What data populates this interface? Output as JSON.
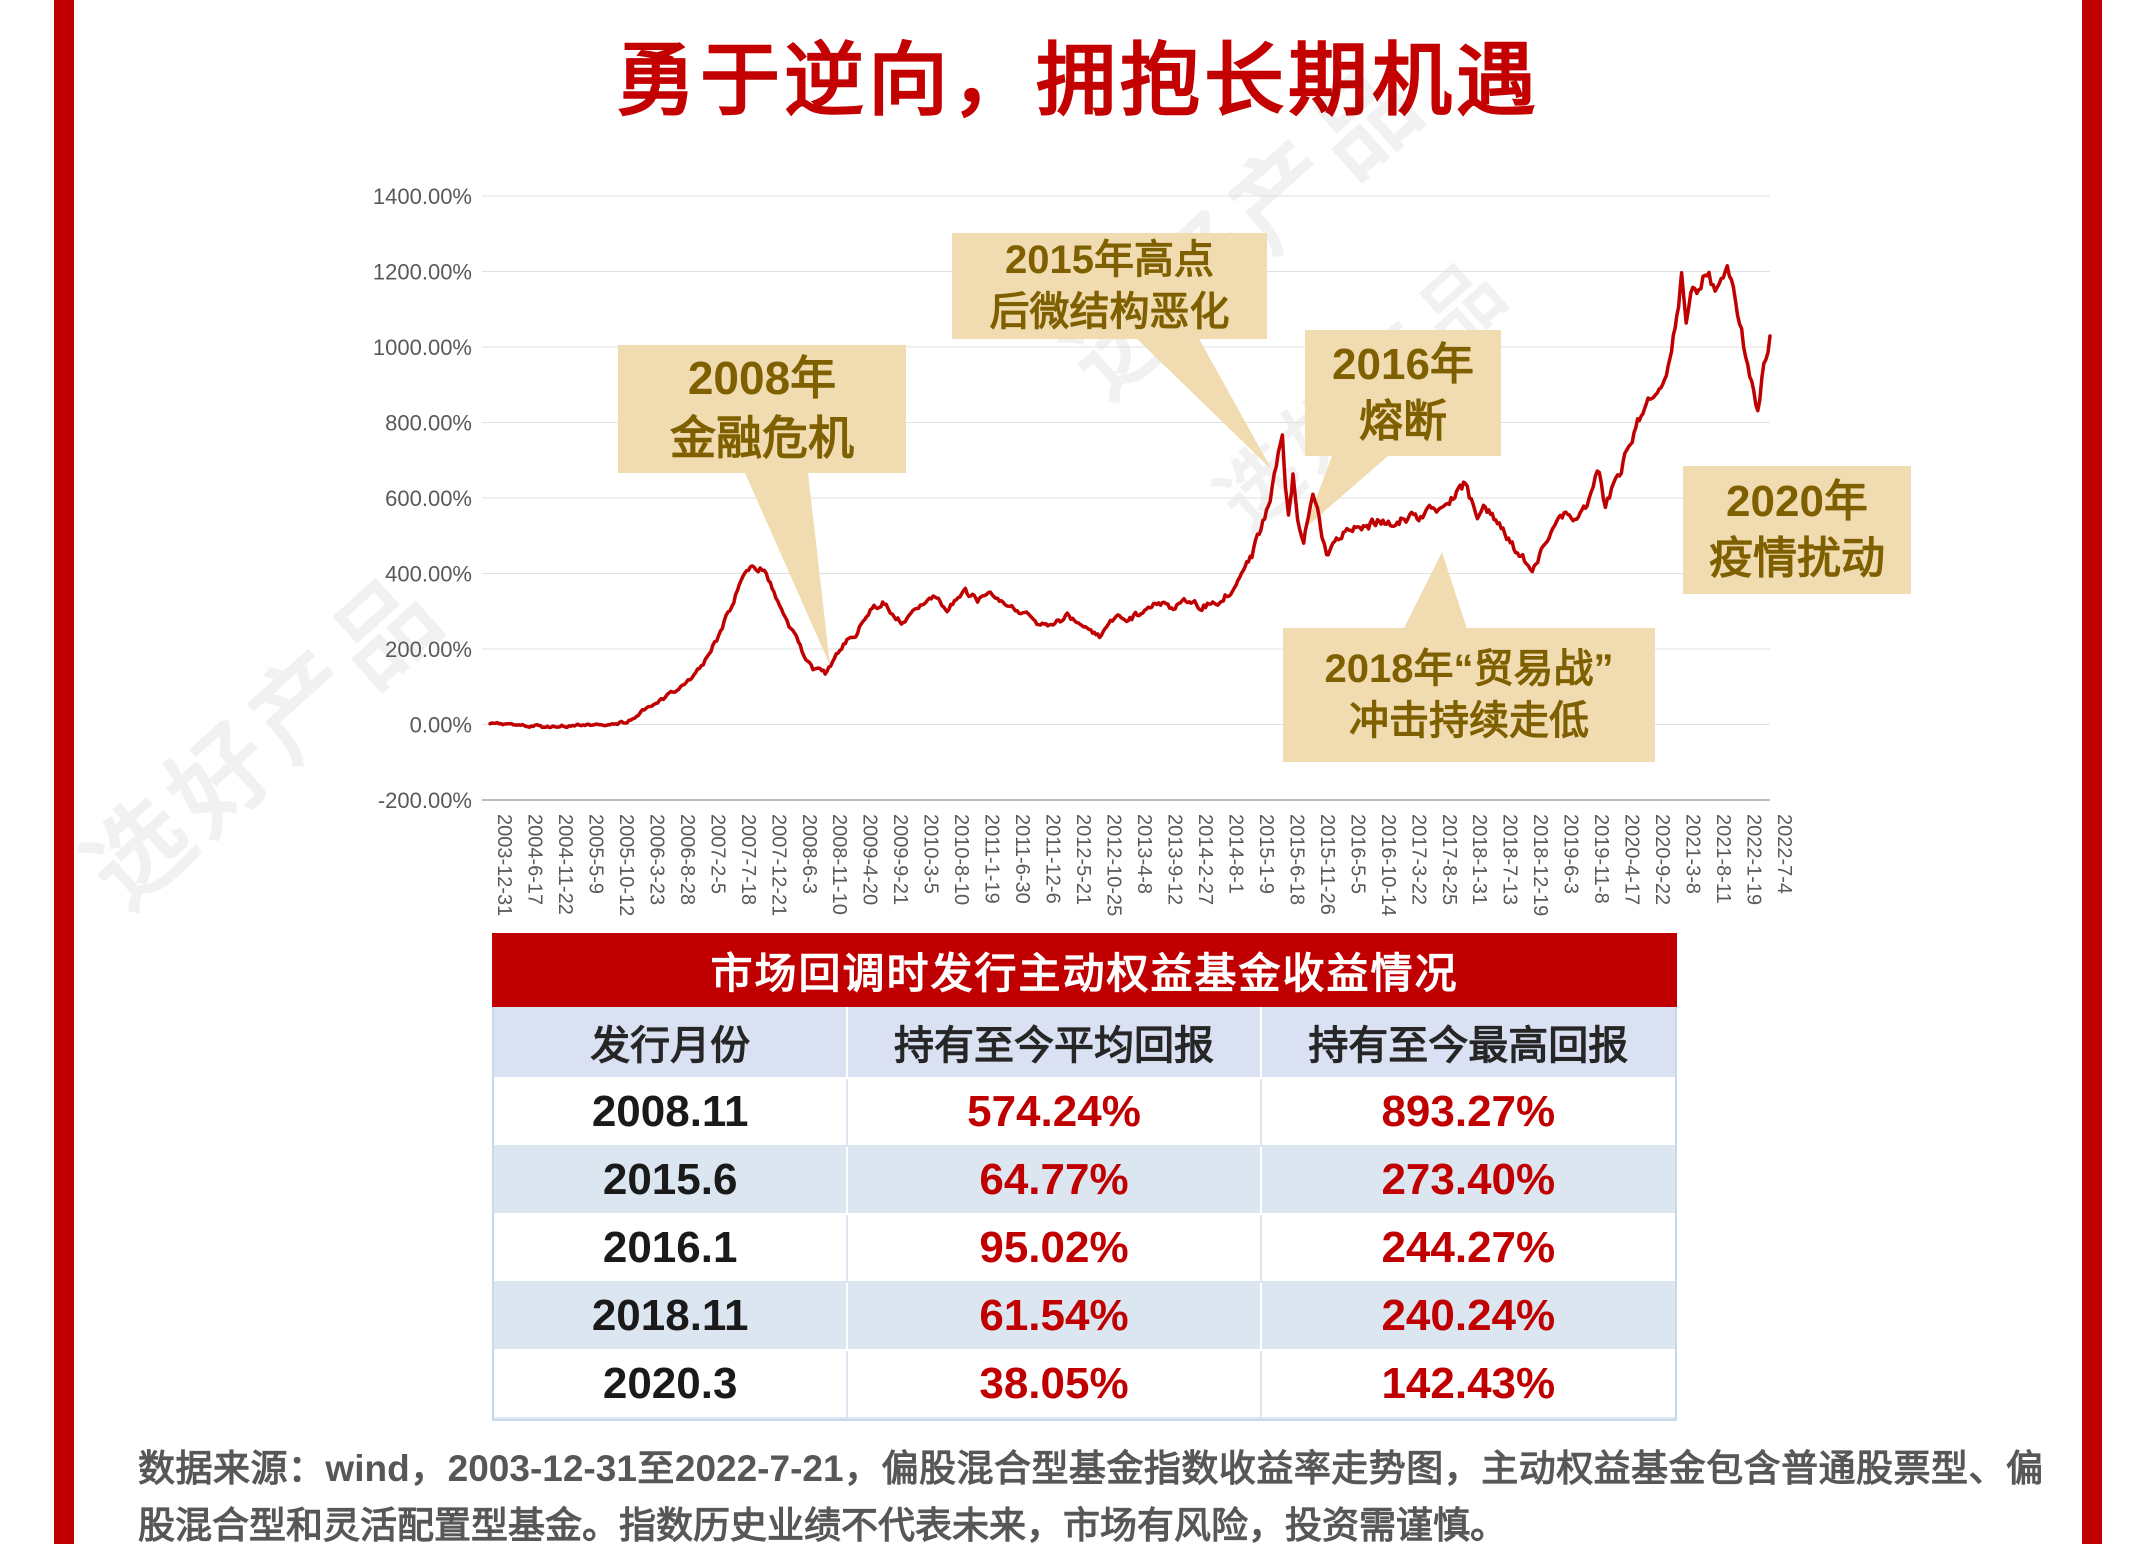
{
  "title": "勇于逆向，拥抱长期机遇",
  "accent_color": "#c00000",
  "watermark": "选好产品",
  "chart_data": {
    "type": "line",
    "title": "",
    "xlabel": "",
    "ylabel": "",
    "grid": true,
    "legend": "none",
    "ylim": [
      -200,
      1400
    ],
    "y_ticks": [
      "1400.00%",
      "1200.00%",
      "1000.00%",
      "800.00%",
      "600.00%",
      "400.00%",
      "200.00%",
      "0.00%",
      "-200.00%"
    ],
    "y_tick_values": [
      1400,
      1200,
      1000,
      800,
      600,
      400,
      200,
      0,
      -200
    ],
    "x_tick_labels": [
      "2003-12-31",
      "2004-6-17",
      "2004-11-22",
      "2005-5-9",
      "2005-10-12",
      "2006-3-23",
      "2006-8-28",
      "2007-2-5",
      "2007-7-18",
      "2007-12-21",
      "2008-6-3",
      "2008-11-10",
      "2009-4-20",
      "2009-9-21",
      "2010-3-5",
      "2010-8-10",
      "2011-1-19",
      "2011-6-30",
      "2011-12-6",
      "2012-5-21",
      "2012-10-25",
      "2013-4-8",
      "2013-9-12",
      "2014-2-27",
      "2014-8-1",
      "2015-1-9",
      "2015-6-18",
      "2015-11-26",
      "2016-5-5",
      "2016-10-14",
      "2017-3-22",
      "2017-8-25",
      "2018-1-31",
      "2018-7-13",
      "2018-12-19",
      "2019-6-3",
      "2019-11-8",
      "2020-4-17",
      "2020-9-22",
      "2021-3-8",
      "2021-8-11",
      "2022-1-19",
      "2022-7-4"
    ],
    "series": [
      {
        "name": "偏股混合型基金指数收益率",
        "color": "#c00000",
        "points": [
          [
            0,
            2
          ],
          [
            1,
            -3
          ],
          [
            2,
            -6
          ],
          [
            3,
            -2
          ],
          [
            4,
            3
          ],
          [
            4.5,
            8
          ],
          [
            5,
            35
          ],
          [
            5.5,
            60
          ],
          [
            6,
            85
          ],
          [
            6.5,
            115
          ],
          [
            7,
            160
          ],
          [
            7.5,
            235
          ],
          [
            8,
            330
          ],
          [
            8.3,
            405
          ],
          [
            8.6,
            430
          ],
          [
            8.8,
            395
          ],
          [
            9,
            415
          ],
          [
            9.2,
            370
          ],
          [
            9.5,
            310
          ],
          [
            10,
            235
          ],
          [
            10.3,
            185
          ],
          [
            10.6,
            150
          ],
          [
            11,
            135
          ],
          [
            11.3,
            175
          ],
          [
            11.6,
            215
          ],
          [
            12,
            240
          ],
          [
            12.3,
            285
          ],
          [
            12.6,
            310
          ],
          [
            13,
            325
          ],
          [
            13.2,
            290
          ],
          [
            13.5,
            270
          ],
          [
            14,
            300
          ],
          [
            14.3,
            320
          ],
          [
            14.6,
            335
          ],
          [
            15,
            310
          ],
          [
            15.3,
            330
          ],
          [
            15.6,
            350
          ],
          [
            16,
            330
          ],
          [
            16.3,
            345
          ],
          [
            16.6,
            340
          ],
          [
            17,
            325
          ],
          [
            17.3,
            300
          ],
          [
            17.6,
            290
          ],
          [
            18,
            270
          ],
          [
            18.3,
            255
          ],
          [
            18.6,
            270
          ],
          [
            19,
            290
          ],
          [
            19.3,
            265
          ],
          [
            19.6,
            250
          ],
          [
            20,
            235
          ],
          [
            20.3,
            260
          ],
          [
            20.6,
            290
          ],
          [
            21,
            280
          ],
          [
            21.3,
            295
          ],
          [
            21.6,
            310
          ],
          [
            22,
            320
          ],
          [
            22.3,
            305
          ],
          [
            22.6,
            315
          ],
          [
            23,
            330
          ],
          [
            23.3,
            310
          ],
          [
            23.6,
            320
          ],
          [
            24,
            330
          ],
          [
            24.3,
            355
          ],
          [
            24.6,
            395
          ],
          [
            25,
            450
          ],
          [
            25.3,
            520
          ],
          [
            25.6,
            600
          ],
          [
            25.8,
            680
          ],
          [
            26,
            780
          ],
          [
            26.1,
            640
          ],
          [
            26.2,
            560
          ],
          [
            26.35,
            660
          ],
          [
            26.5,
            540
          ],
          [
            26.7,
            480
          ],
          [
            26.85,
            560
          ],
          [
            27,
            610
          ],
          [
            27.15,
            580
          ],
          [
            27.3,
            490
          ],
          [
            27.45,
            450
          ],
          [
            27.6,
            470
          ],
          [
            28,
            505
          ],
          [
            28.3,
            520
          ],
          [
            28.6,
            515
          ],
          [
            29,
            535
          ],
          [
            29.3,
            540
          ],
          [
            29.6,
            530
          ],
          [
            30,
            545
          ],
          [
            30.3,
            555
          ],
          [
            30.6,
            550
          ],
          [
            31,
            570
          ],
          [
            31.3,
            585
          ],
          [
            31.6,
            605
          ],
          [
            32,
            640
          ],
          [
            32.2,
            590
          ],
          [
            32.4,
            560
          ],
          [
            32.6,
            585
          ],
          [
            33,
            545
          ],
          [
            33.3,
            510
          ],
          [
            33.6,
            470
          ],
          [
            34,
            430
          ],
          [
            34.2,
            405
          ],
          [
            34.5,
            455
          ],
          [
            35,
            530
          ],
          [
            35.3,
            560
          ],
          [
            35.6,
            545
          ],
          [
            36,
            585
          ],
          [
            36.2,
            640
          ],
          [
            36.4,
            675
          ],
          [
            36.6,
            580
          ],
          [
            36.8,
            620
          ],
          [
            37,
            650
          ],
          [
            37.3,
            720
          ],
          [
            37.6,
            790
          ],
          [
            38,
            845
          ],
          [
            38.3,
            880
          ],
          [
            38.6,
            940
          ],
          [
            39,
            1100
          ],
          [
            39.1,
            1195
          ],
          [
            39.25,
            1060
          ],
          [
            39.4,
            1120
          ],
          [
            39.6,
            1150
          ],
          [
            39.8,
            1175
          ],
          [
            40,
            1190
          ],
          [
            40.2,
            1130
          ],
          [
            40.4,
            1155
          ],
          [
            40.6,
            1200
          ],
          [
            40.8,
            1180
          ],
          [
            41,
            1060
          ],
          [
            41.2,
            980
          ],
          [
            41.4,
            900
          ],
          [
            41.6,
            835
          ],
          [
            41.8,
            950
          ],
          [
            42,
            1035
          ]
        ]
      }
    ],
    "annotations": [
      {
        "id": "2008-crisis",
        "text": "2008年\n金融危机"
      },
      {
        "id": "2015-peak",
        "text": "2015年高点\n后微结构恶化"
      },
      {
        "id": "2016-circuit-breaker",
        "text": "2016年\n熔断"
      },
      {
        "id": "2018-trade-war",
        "text": "2018年“贸易战”\n冲击持续走低"
      },
      {
        "id": "2020-covid",
        "text": "2020年\n疫情扰动"
      }
    ]
  },
  "table": {
    "title": "市场回调时发行主动权益基金收益情况",
    "columns": [
      "发行月份",
      "持有至今平均回报",
      "持有至今最高回报"
    ],
    "rows": [
      {
        "month": "2008.11",
        "avg": "574.24%",
        "max": "893.27%"
      },
      {
        "month": "2015.6",
        "avg": "64.77%",
        "max": "273.40%"
      },
      {
        "month": "2016.1",
        "avg": "95.02%",
        "max": "244.27%"
      },
      {
        "month": "2018.11",
        "avg": "61.54%",
        "max": "240.24%"
      },
      {
        "month": "2020.3",
        "avg": "38.05%",
        "max": "142.43%"
      }
    ]
  },
  "footer": "数据来源：wind，2003-12-31至2022-7-21，偏股混合型基金指数收益率走势图，主动权益基金包含普通股票型、偏股混合型和灵活配置型基金。指数历史业绩不代表未来，市场有风险，投资需谨慎。"
}
